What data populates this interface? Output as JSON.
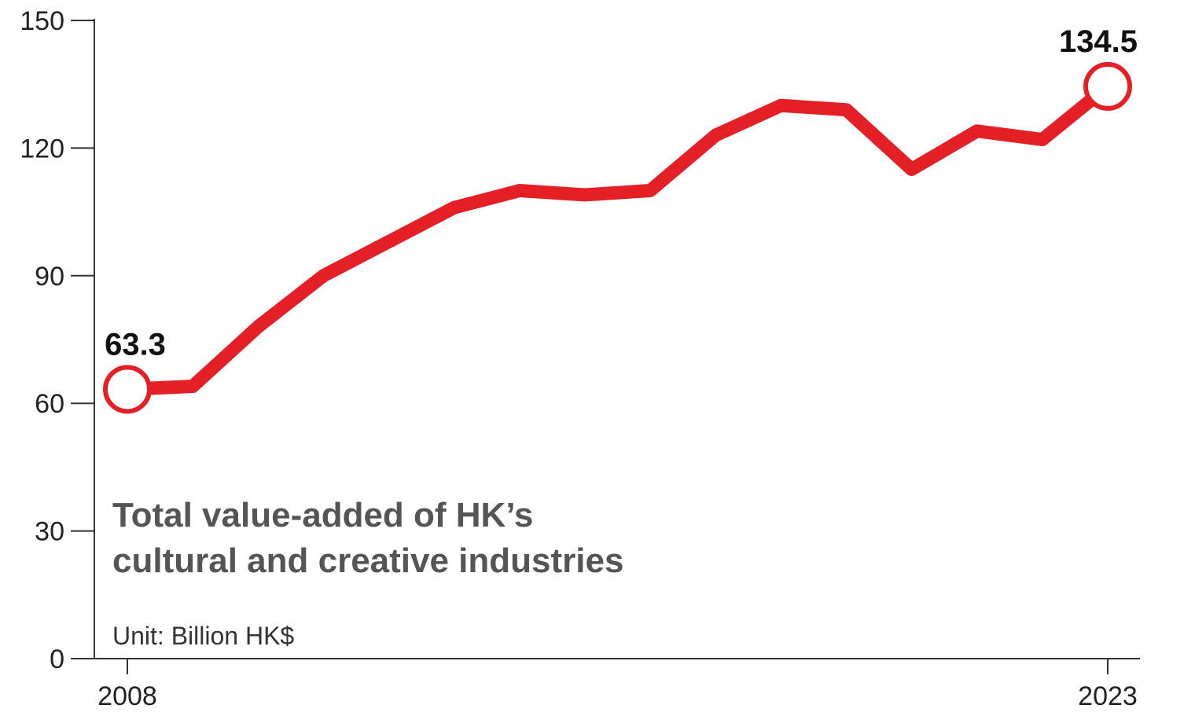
{
  "chart_data": {
    "type": "line",
    "title": [
      "Total value-added of HK’s",
      "cultural and creative industries"
    ],
    "unit": "Unit: Billion HK$",
    "xlabel": "",
    "ylabel": "",
    "x": [
      2008,
      2009,
      2010,
      2011,
      2012,
      2013,
      2014,
      2015,
      2016,
      2017,
      2018,
      2019,
      2020,
      2021,
      2022,
      2023
    ],
    "x_tick_labels": [
      "2008",
      "2023"
    ],
    "y_ticks": [
      0,
      30,
      60,
      90,
      120,
      150
    ],
    "y_tick_labels": [
      "0",
      "30",
      "60",
      "90",
      "120",
      "150"
    ],
    "ylim": [
      0,
      150
    ],
    "series": [
      {
        "values": [
          63.3,
          64.0,
          78.0,
          90.0,
          98.0,
          106.0,
          110.0,
          109.0,
          110.0,
          123.0,
          130.0,
          129.0,
          115.0,
          124.0,
          122.0,
          134.5
        ]
      }
    ],
    "annotations": [
      {
        "x": 2008,
        "text": "63.3"
      },
      {
        "x": 2023,
        "text": "134.5"
      }
    ],
    "grid": false,
    "legend": "none",
    "colors": {
      "line": "#e41f26",
      "marker_fill": "#ffffff",
      "axis": "#333333",
      "title": "#555555"
    }
  }
}
